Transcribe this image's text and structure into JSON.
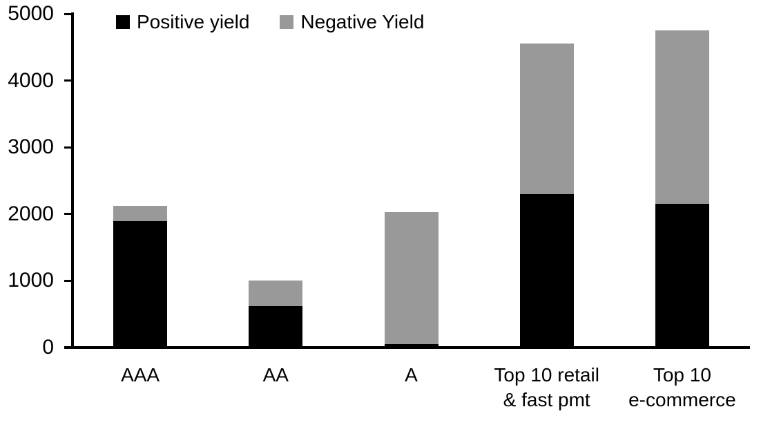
{
  "chart_data": {
    "type": "bar",
    "stacked": true,
    "title": "",
    "xlabel": "",
    "ylabel": "",
    "categories": [
      "AAA",
      "AA",
      "A",
      "Top 10 retail\n& fast pmt",
      "Top 10\ne-commerce"
    ],
    "series": [
      {
        "name": "Positive yield",
        "color": "#000000",
        "values": [
          1890,
          620,
          50,
          2300,
          2150
        ]
      },
      {
        "name": "Negative Yield",
        "color": "#999999",
        "values": [
          230,
          380,
          1980,
          2250,
          2600
        ]
      }
    ],
    "totals": [
      2120,
      1000,
      2030,
      4550,
      4750
    ],
    "ylim": [
      0,
      5000
    ],
    "yticks": [
      0,
      1000,
      2000,
      3000,
      4000,
      5000
    ],
    "grid": false,
    "legend_position": "top"
  }
}
